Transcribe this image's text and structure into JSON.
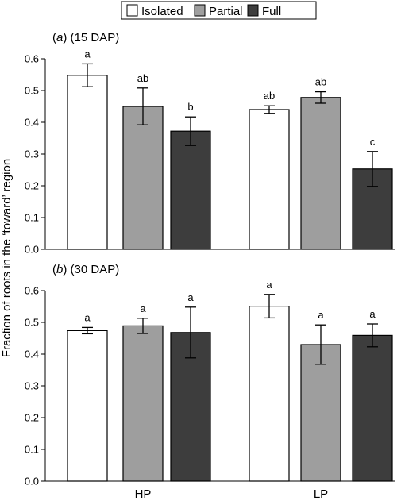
{
  "chart_data": {
    "type": "bar",
    "ylabel": "Fraction of roots in the ‘toward’ region",
    "legend": {
      "placement": "top-center",
      "entries": [
        {
          "label": "Isolated",
          "color": "#ffffff"
        },
        {
          "label": "Partial",
          "color": "#9e9e9e"
        },
        {
          "label": "Full",
          "color": "#3d3d3d"
        }
      ]
    },
    "categories": [
      "HP",
      "LP"
    ],
    "series_names": [
      "Isolated",
      "Partial",
      "Full"
    ],
    "series_colors": [
      "#ffffff",
      "#9e9e9e",
      "#3d3d3d"
    ],
    "panels": [
      {
        "tag": "a",
        "title_rest": " (15 DAP)",
        "ylim": [
          0,
          0.6
        ],
        "yticks": [
          "0.0",
          "0.1",
          "0.2",
          "0.3",
          "0.4",
          "0.5",
          "0.6"
        ],
        "values": [
          [
            0.548,
            0.45,
            0.372
          ],
          [
            0.44,
            0.478,
            0.253
          ]
        ],
        "errors": [
          [
            0.036,
            0.058,
            0.045
          ],
          [
            0.012,
            0.018,
            0.055
          ]
        ],
        "letters": [
          [
            "a",
            "ab",
            "b"
          ],
          [
            "ab",
            "ab",
            "c"
          ]
        ]
      },
      {
        "tag": "b",
        "title_rest": " (30 DAP)",
        "ylim": [
          0,
          0.6
        ],
        "yticks": [
          "0.0",
          "0.1",
          "0.2",
          "0.3",
          "0.4",
          "0.5",
          "0.6"
        ],
        "values": [
          [
            0.474,
            0.489,
            0.468
          ],
          [
            0.551,
            0.43,
            0.459
          ]
        ],
        "errors": [
          [
            0.01,
            0.024,
            0.08
          ],
          [
            0.037,
            0.062,
            0.036
          ]
        ],
        "letters": [
          [
            "a",
            "a",
            "a"
          ],
          [
            "a",
            "a",
            "a"
          ]
        ]
      }
    ]
  }
}
